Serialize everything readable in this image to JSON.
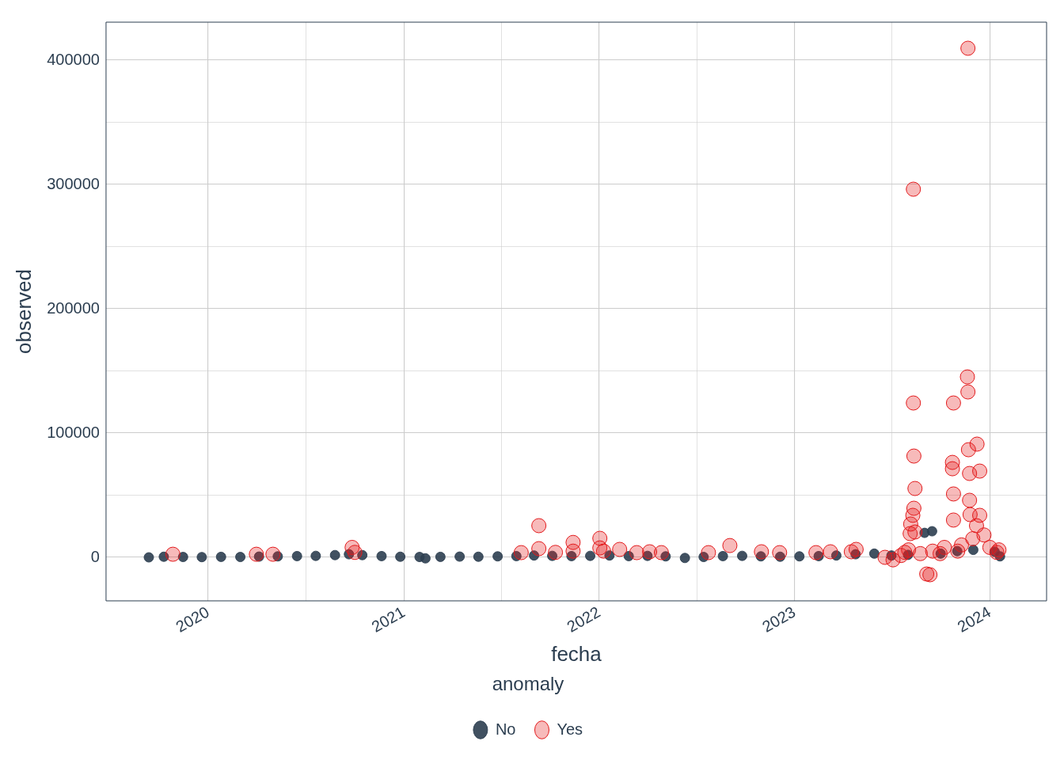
{
  "chart_data": {
    "type": "scatter",
    "xlabel": "fecha",
    "ylabel": "observed",
    "legend_title": "anomaly",
    "legend": "bottom",
    "grid": true,
    "marker": "circle",
    "xlim": [
      "2019-06-24",
      "2024-04-16"
    ],
    "xticks": [
      {
        "value": "2020",
        "label": "2020"
      },
      {
        "value": "2020-07-02",
        "label": null
      },
      {
        "value": "2021",
        "label": "2021"
      },
      {
        "value": "2021-07-02",
        "label": null
      },
      {
        "value": "2022",
        "label": "2022"
      },
      {
        "value": "2022-07-02",
        "label": null
      },
      {
        "value": "2023",
        "label": "2023"
      },
      {
        "value": "2023-07-02",
        "label": null
      },
      {
        "value": "2024",
        "label": "2024"
      }
    ],
    "ylim": [
      -35000,
      430600
    ],
    "yticks": [
      0,
      {
        "value": 50000,
        "label": null
      },
      100000,
      {
        "value": 150000,
        "label": null
      },
      200000,
      {
        "value": 250000,
        "label": null
      },
      300000,
      {
        "value": 350000,
        "label": null
      },
      400000
    ],
    "series": [
      {
        "name": "No",
        "color": "#2c3e50",
        "x": [
          "2019-09-12",
          "2019-10-10",
          "2019-11-15",
          "2019-12-20",
          "2020-01-25",
          "2020-03-01",
          "2020-04-05",
          "2020-05-10",
          "2020-06-15",
          "2020-07-20",
          "2020-08-25",
          "2020-09-20",
          "2020-10-15",
          "2020-11-20",
          "2020-12-25",
          "2021-01-30",
          "2021-02-10",
          "2021-03-10",
          "2021-04-15",
          "2021-05-20",
          "2021-06-25",
          "2021-07-30",
          "2021-09-01",
          "2021-10-05",
          "2021-11-10",
          "2021-12-15",
          "2022-01-20",
          "2022-02-25",
          "2022-04-01",
          "2022-05-05",
          "2022-06-10",
          "2022-07-15",
          "2022-08-20",
          "2022-09-25",
          "2022-10-30",
          "2022-12-05",
          "2023-01-10",
          "2023-02-15",
          "2023-03-20",
          "2023-04-25",
          "2023-05-30",
          "2023-07-01",
          "2023-08-01",
          "2023-09-01",
          "2023-09-15",
          "2023-10-01",
          "2023-11-01",
          "2023-12-01",
          "2024-01-10",
          "2024-01-20"
        ],
        "values": [
          0,
          500,
          300,
          200,
          400,
          300,
          600,
          800,
          1000,
          1200,
          1800,
          2500,
          1800,
          1000,
          500,
          300,
          -800,
          400,
          600,
          500,
          800,
          1000,
          1500,
          1200,
          1000,
          1200,
          1500,
          1000,
          1200,
          800,
          -500,
          300,
          1000,
          1200,
          800,
          500,
          800,
          1000,
          1500,
          2500,
          3000,
          1500,
          2000,
          19700,
          21000,
          3000,
          5000,
          6000,
          4500,
          800
        ]
      },
      {
        "name": "Yes",
        "color": "#e31a1c",
        "x": [
          "2019-10-27",
          "2020-03-31",
          "2020-05-01",
          "2020-09-26",
          "2020-10-01",
          "2021-08-08",
          "2021-09-10",
          "2021-09-10",
          "2021-10-11",
          "2021-11-13",
          "2021-11-13",
          "2022-01-02",
          "2022-01-02",
          "2022-01-09",
          "2022-02-08",
          "2022-03-12",
          "2022-04-05",
          "2022-04-27",
          "2022-07-24",
          "2022-09-02",
          "2022-10-31",
          "2022-12-04",
          "2023-02-10",
          "2023-03-09",
          "2023-04-17",
          "2023-04-26",
          "2023-06-19",
          "2023-07-04",
          "2023-07-19",
          "2023-07-26",
          "2023-08-02",
          "2023-08-05",
          "2023-08-06",
          "2023-08-10",
          "2023-08-11",
          "2023-08-11",
          "2023-08-12",
          "2023-08-12",
          "2023-08-14",
          "2023-08-14",
          "2023-08-24",
          "2023-09-05",
          "2023-09-11",
          "2023-09-16",
          "2023-09-30",
          "2023-10-08",
          "2023-10-23",
          "2023-10-23",
          "2023-10-25",
          "2023-10-25",
          "2023-10-25",
          "2023-11-02",
          "2023-11-09",
          "2023-11-20",
          "2023-11-21",
          "2023-11-21",
          "2023-11-22",
          "2023-11-24",
          "2023-11-24",
          "2023-11-25",
          "2023-11-30",
          "2023-12-07",
          "2023-12-08",
          "2023-12-13",
          "2023-12-13",
          "2023-12-21",
          "2024-01-01",
          "2024-01-14",
          "2024-01-18"
        ],
        "values": [
          2500,
          2500,
          2500,
          8000,
          4000,
          3800,
          25500,
          7000,
          4000,
          12000,
          5000,
          15300,
          7600,
          5000,
          6400,
          3800,
          4500,
          3800,
          3800,
          9500,
          4500,
          3800,
          3800,
          4500,
          4500,
          6400,
          0,
          -2000,
          1500,
          4000,
          6000,
          19100,
          26800,
          33800,
          296200,
          124200,
          81500,
          39500,
          55400,
          20400,
          3000,
          -13400,
          -14000,
          5000,
          3000,
          8000,
          76400,
          71300,
          124200,
          51000,
          30000,
          5000,
          10000,
          145200,
          409600,
          133100,
          86600,
          67500,
          45900,
          34400,
          15000,
          25500,
          91100,
          69400,
          33800,
          18000,
          8000,
          4000,
          6000
        ]
      }
    ]
  }
}
